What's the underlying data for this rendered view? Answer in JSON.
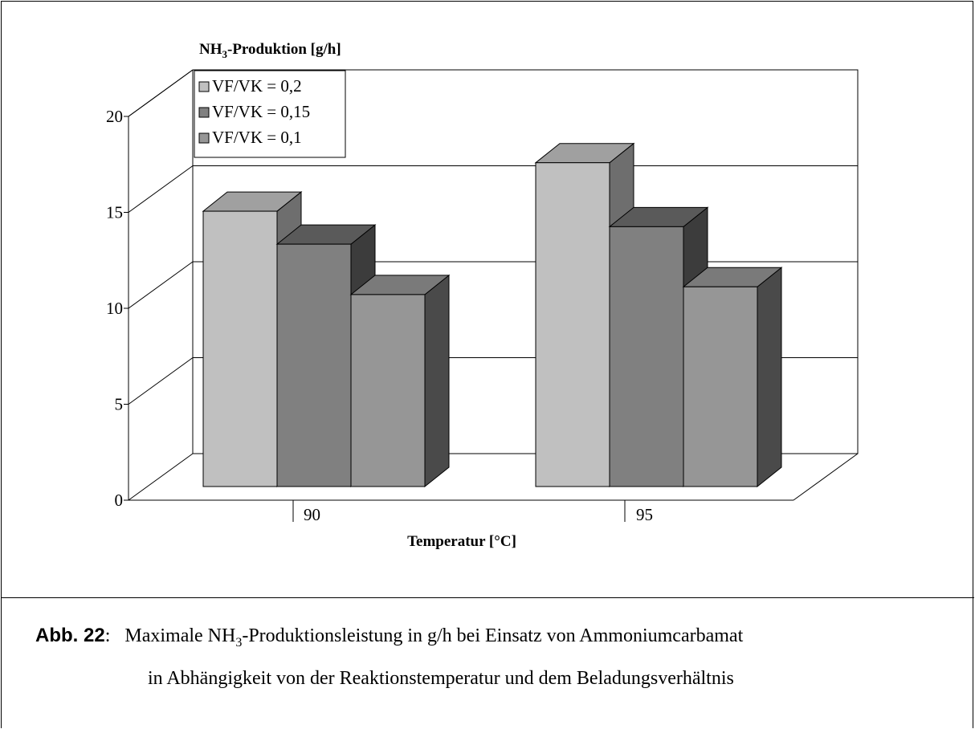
{
  "chart_data": {
    "type": "bar",
    "title_main": "NH",
    "title_sub": "3",
    "title_rest": "-Produktion [g/h]",
    "xlabel": "Temperatur [°C]",
    "categories": [
      "90",
      "95"
    ],
    "series": [
      {
        "name": "VF/VK = 0,2",
        "values": [
          14.2,
          16.7
        ],
        "front": "#c0c0c0",
        "side": "#6e6e6e",
        "top": "#a0a0a0"
      },
      {
        "name": "VF/VK = 0,15",
        "values": [
          12.5,
          13.4
        ],
        "front": "#808080",
        "side": "#3c3c3c",
        "top": "#5a5a5a"
      },
      {
        "name": "VF/VK = 0,1",
        "values": [
          9.9,
          10.3
        ],
        "front": "#969696",
        "side": "#4a4a4a",
        "top": "#7a7a7a"
      }
    ],
    "ylim": [
      0,
      20
    ],
    "yticks": [
      "0",
      "5",
      "10",
      "15",
      "20"
    ],
    "legend_position": "top-left",
    "grid": true
  },
  "caption": {
    "label": "Abb. 22",
    "colon": ":",
    "line1_a": "Maximale NH",
    "line1_sub": "3",
    "line1_b": "-Produktionsleistung in g/h bei Einsatz von Ammoniumcarbamat",
    "line2": "in Abhängigkeit von der Reaktionstemperatur und dem Beladungsverhältnis"
  }
}
